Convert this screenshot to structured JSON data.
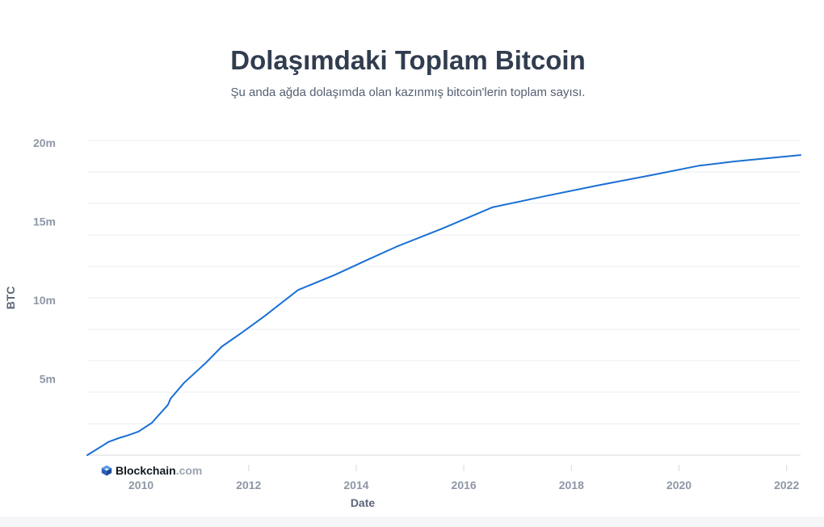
{
  "chart": {
    "title": "Dolaşımdaki Toplam Bitcoin",
    "subtitle": "Şu anda ağda dolaşımda olan kazınmış bitcoin'lerin toplam sayısı."
  },
  "branding": {
    "name": "Blockchain",
    "suffix": ".com",
    "icon": "blockchain-logo-icon",
    "color": "#2f6fd6"
  },
  "colors": {
    "line": "#1a6fd4",
    "grid": "#e9ecf0",
    "axis": "#d5d9e0"
  },
  "chart_data": {
    "type": "line",
    "title": "Dolaşımdaki Toplam Bitcoin",
    "subtitle": "Şu anda ağda dolaşımda olan kazınmış bitcoin'lerin toplam sayısı.",
    "xlabel": "Date",
    "ylabel": "BTC",
    "xlim": [
      2009.0,
      2022.26
    ],
    "ylim": [
      0,
      20000000
    ],
    "x_ticks": [
      2010,
      2012,
      2014,
      2016,
      2018,
      2020,
      2022
    ],
    "x_tick_labels": [
      "2010",
      "2012",
      "2014",
      "2016",
      "2018",
      "2020",
      "2022"
    ],
    "y_ticks": [
      5000000,
      10000000,
      15000000,
      20000000
    ],
    "y_tick_labels": [
      "5m",
      "10m",
      "15m",
      "20m"
    ],
    "y_gridlines": [
      2000000,
      4000000,
      6000000,
      8000000,
      10000000,
      12000000,
      14000000,
      16000000,
      18000000,
      20000000
    ],
    "grid": true,
    "legend": "none",
    "series": [
      {
        "x": [
          2009.0,
          2009.4,
          2009.6,
          2009.75,
          2009.95,
          2010.2,
          2010.5,
          2010.55,
          2010.8,
          2011.2,
          2011.5,
          2011.9,
          2012.3,
          2012.92,
          2013.6,
          2014.2,
          2014.75,
          2015.6,
          2016.53,
          2017.5,
          2018.5,
          2019.5,
          2020.38,
          2021.0,
          2021.5,
          2022.26
        ],
        "y": [
          0,
          850000,
          1100000,
          1250000,
          1500000,
          2050000,
          3200000,
          3600000,
          4600000,
          5850000,
          6900000,
          7850000,
          8850000,
          10500000,
          11450000,
          12400000,
          13250000,
          14400000,
          15750000,
          16450000,
          17150000,
          17800000,
          18400000,
          18650000,
          18820000,
          19070000
        ]
      }
    ]
  }
}
